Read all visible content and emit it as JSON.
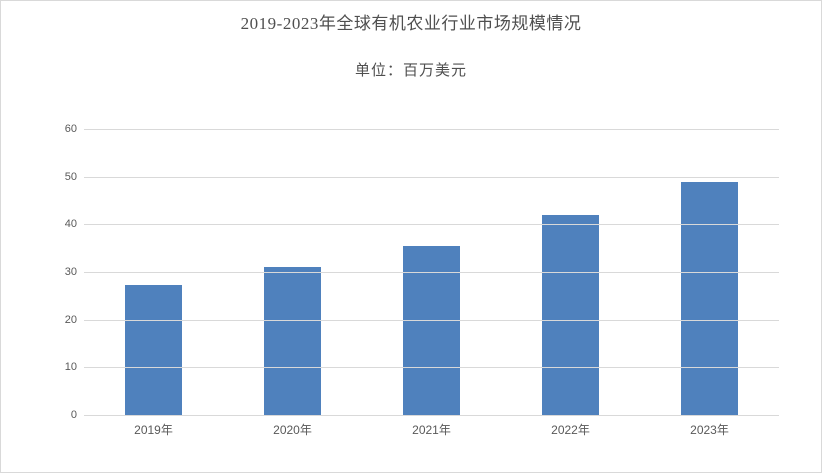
{
  "chart_data": {
    "type": "bar",
    "title": "2019-2023年全球有机农业行业市场规模情况",
    "subtitle": "单位：百万美元",
    "categories": [
      "2019年",
      "2020年",
      "2021年",
      "2022年",
      "2023年"
    ],
    "values": [
      27.3,
      31,
      35.5,
      42,
      48.9
    ],
    "xlabel": "",
    "ylabel": "",
    "ylim": [
      0,
      60
    ],
    "yticks": [
      0,
      10,
      20,
      30,
      40,
      50,
      60
    ],
    "grid": "horizontal",
    "legend": "none",
    "bar_color": "#4f81bd",
    "gridline_color": "#d9d9d9",
    "label_color": "#595959"
  }
}
